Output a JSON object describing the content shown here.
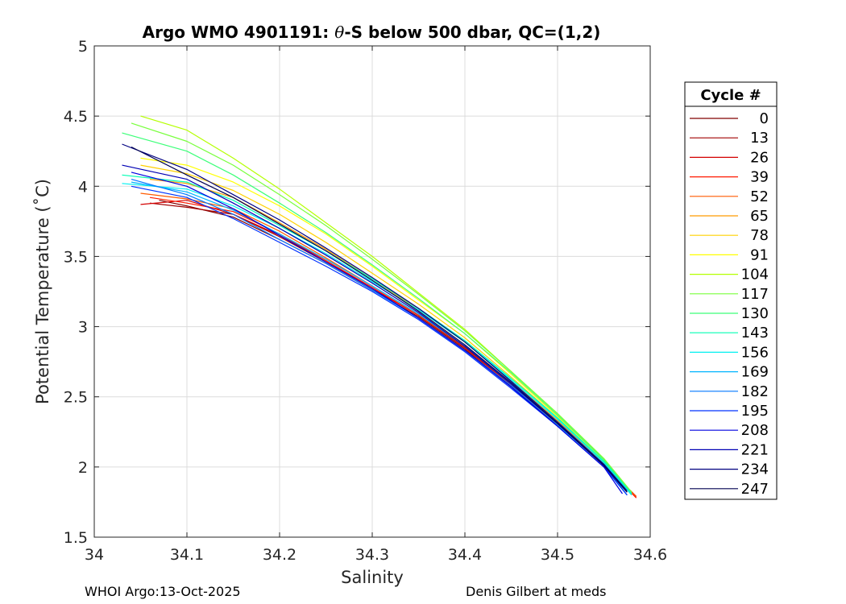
{
  "chart_data": {
    "type": "line",
    "title_prefix": "Argo WMO 4901191: ",
    "title_symbol": "θ",
    "title_suffix": "-S below 500 dbar,  QC=(1,2)",
    "xlabel": "Salinity",
    "ylabel": "Potential Temperature (˚C)",
    "xlim": [
      34,
      34.6
    ],
    "ylim": [
      1.5,
      5
    ],
    "xticks": [
      34,
      34.1,
      34.2,
      34.3,
      34.4,
      34.5,
      34.6
    ],
    "xtick_labels": [
      "34",
      "34.1",
      "34.2",
      "34.3",
      "34.4",
      "34.5",
      "34.6"
    ],
    "yticks": [
      1.5,
      2,
      2.5,
      3,
      3.5,
      4,
      4.5,
      5
    ],
    "ytick_labels": [
      "1.5",
      "2",
      "2.5",
      "3",
      "3.5",
      "4",
      "4.5",
      "5"
    ],
    "grid": true,
    "legend_title": "Cycle #",
    "legend_position": "outside-right",
    "series": [
      {
        "name": "0",
        "color": "#800000",
        "x": [
          34.07,
          34.1,
          34.15,
          34.2,
          34.25,
          34.3,
          34.35,
          34.4,
          34.45,
          34.5,
          34.55,
          34.585
        ],
        "y": [
          3.9,
          3.86,
          3.78,
          3.62,
          3.45,
          3.26,
          3.07,
          2.84,
          2.57,
          2.3,
          2.02,
          1.79
        ]
      },
      {
        "name": "13",
        "color": "#a00000",
        "x": [
          34.06,
          34.1,
          34.15,
          34.2,
          34.25,
          34.3,
          34.35,
          34.4,
          34.45,
          34.5,
          34.55,
          34.585
        ],
        "y": [
          3.88,
          3.85,
          3.8,
          3.64,
          3.46,
          3.27,
          3.08,
          2.85,
          2.58,
          2.31,
          2.02,
          1.79
        ]
      },
      {
        "name": "26",
        "color": "#d40000",
        "x": [
          34.05,
          34.1,
          34.15,
          34.2,
          34.25,
          34.3,
          34.35,
          34.4,
          34.45,
          34.5,
          34.55,
          34.585
        ],
        "y": [
          3.87,
          3.9,
          3.8,
          3.65,
          3.47,
          3.27,
          3.08,
          2.85,
          2.58,
          2.31,
          2.02,
          1.78
        ]
      },
      {
        "name": "39",
        "color": "#ff1a00",
        "x": [
          34.06,
          34.1,
          34.15,
          34.2,
          34.25,
          34.3,
          34.35,
          34.4,
          34.45,
          34.5,
          34.55,
          34.585
        ],
        "y": [
          3.92,
          3.88,
          3.82,
          3.66,
          3.47,
          3.28,
          3.08,
          2.86,
          2.58,
          2.31,
          2.02,
          1.78
        ]
      },
      {
        "name": "52",
        "color": "#ff5a00",
        "x": [
          34.05,
          34.1,
          34.15,
          34.2,
          34.25,
          34.3,
          34.35,
          34.4,
          34.45,
          34.5,
          34.55,
          34.585
        ],
        "y": [
          3.95,
          3.91,
          3.84,
          3.68,
          3.49,
          3.29,
          3.09,
          2.86,
          2.59,
          2.31,
          2.02,
          1.79
        ]
      },
      {
        "name": "65",
        "color": "#ff9a00",
        "x": [
          34.06,
          34.1,
          34.15,
          34.2,
          34.25,
          34.3,
          34.35,
          34.4,
          34.45,
          34.5,
          34.55,
          34.58
        ],
        "y": [
          4.05,
          4.02,
          3.92,
          3.74,
          3.55,
          3.34,
          3.12,
          2.89,
          2.61,
          2.33,
          2.03,
          1.8
        ]
      },
      {
        "name": "78",
        "color": "#ffd000",
        "x": [
          34.05,
          34.1,
          34.15,
          34.2,
          34.25,
          34.3,
          34.35,
          34.4,
          34.45,
          34.5,
          34.55,
          34.58
        ],
        "y": [
          4.15,
          4.09,
          3.97,
          3.8,
          3.6,
          3.38,
          3.16,
          2.92,
          2.64,
          2.35,
          2.04,
          1.81
        ]
      },
      {
        "name": "91",
        "color": "#ffff00",
        "x": [
          34.05,
          34.1,
          34.15,
          34.2,
          34.25,
          34.3,
          34.35,
          34.4,
          34.45,
          34.5,
          34.55,
          34.58
        ],
        "y": [
          4.2,
          4.15,
          4.03,
          3.86,
          3.66,
          3.43,
          3.19,
          2.95,
          2.66,
          2.36,
          2.05,
          1.81
        ]
      },
      {
        "name": "104",
        "color": "#b4ff00",
        "x": [
          34.05,
          34.1,
          34.15,
          34.2,
          34.25,
          34.3,
          34.35,
          34.4,
          34.45,
          34.5,
          34.55,
          34.58
        ],
        "y": [
          4.5,
          4.4,
          4.2,
          3.98,
          3.74,
          3.5,
          3.24,
          2.98,
          2.68,
          2.38,
          2.06,
          1.82
        ]
      },
      {
        "name": "117",
        "color": "#78ff3c",
        "x": [
          34.04,
          34.1,
          34.15,
          34.2,
          34.25,
          34.3,
          34.35,
          34.4,
          34.45,
          34.5,
          34.55,
          34.58
        ],
        "y": [
          4.45,
          4.32,
          4.15,
          3.94,
          3.72,
          3.48,
          3.23,
          2.97,
          2.68,
          2.38,
          2.06,
          1.82
        ]
      },
      {
        "name": "130",
        "color": "#3cff78",
        "x": [
          34.03,
          34.1,
          34.15,
          34.2,
          34.25,
          34.3,
          34.35,
          34.4,
          34.45,
          34.5,
          34.55,
          34.58
        ],
        "y": [
          4.38,
          4.25,
          4.08,
          3.88,
          3.67,
          3.44,
          3.2,
          2.95,
          2.67,
          2.37,
          2.05,
          1.81
        ]
      },
      {
        "name": "143",
        "color": "#00ffb4",
        "x": [
          34.03,
          34.1,
          34.15,
          34.2,
          34.25,
          34.3,
          34.35,
          34.4,
          34.45,
          34.5,
          34.55,
          34.58
        ],
        "y": [
          4.08,
          4.03,
          3.9,
          3.72,
          3.54,
          3.34,
          3.13,
          2.9,
          2.63,
          2.35,
          2.04,
          1.81
        ]
      },
      {
        "name": "156",
        "color": "#00f0f0",
        "x": [
          34.03,
          34.1,
          34.15,
          34.2,
          34.25,
          34.3,
          34.35,
          34.4,
          34.45,
          34.5,
          34.55,
          34.58
        ],
        "y": [
          4.02,
          3.98,
          3.86,
          3.7,
          3.52,
          3.32,
          3.12,
          2.89,
          2.62,
          2.34,
          2.03,
          1.8
        ]
      },
      {
        "name": "169",
        "color": "#00b4ff",
        "x": [
          34.04,
          34.1,
          34.15,
          34.2,
          34.25,
          34.3,
          34.35,
          34.4,
          34.45,
          34.5,
          34.55,
          34.575
        ],
        "y": [
          4.03,
          3.96,
          3.83,
          3.66,
          3.48,
          3.29,
          3.09,
          2.86,
          2.6,
          2.32,
          2.02,
          1.8
        ]
      },
      {
        "name": "182",
        "color": "#0078ff",
        "x": [
          34.04,
          34.1,
          34.15,
          34.2,
          34.25,
          34.3,
          34.35,
          34.4,
          34.45,
          34.5,
          34.55,
          34.575
        ],
        "y": [
          4.05,
          3.94,
          3.8,
          3.62,
          3.45,
          3.26,
          3.06,
          2.83,
          2.58,
          2.3,
          2.01,
          1.8
        ]
      },
      {
        "name": "195",
        "color": "#0032ff",
        "x": [
          34.04,
          34.1,
          34.15,
          34.2,
          34.25,
          34.3,
          34.35,
          34.4,
          34.45,
          34.5,
          34.55,
          34.575
        ],
        "y": [
          4.0,
          3.92,
          3.77,
          3.6,
          3.43,
          3.25,
          3.05,
          2.82,
          2.56,
          2.29,
          2.0,
          1.8
        ]
      },
      {
        "name": "208",
        "color": "#0000e0",
        "x": [
          34.04,
          34.1,
          34.15,
          34.2,
          34.25,
          34.3,
          34.35,
          34.4,
          34.45,
          34.5,
          34.55,
          34.57
        ],
        "y": [
          4.1,
          4.0,
          3.84,
          3.65,
          3.46,
          3.27,
          3.06,
          2.83,
          2.57,
          2.29,
          2.0,
          1.81
        ]
      },
      {
        "name": "221",
        "color": "#0000b4",
        "x": [
          34.03,
          34.1,
          34.15,
          34.2,
          34.25,
          34.3,
          34.35,
          34.4,
          34.45,
          34.5,
          34.55,
          34.575
        ],
        "y": [
          4.15,
          4.05,
          3.88,
          3.7,
          3.51,
          3.31,
          3.1,
          2.86,
          2.59,
          2.31,
          2.01,
          1.82
        ]
      },
      {
        "name": "234",
        "color": "#000080",
        "x": [
          34.03,
          34.1,
          34.15,
          34.2,
          34.25,
          34.3,
          34.35,
          34.4,
          34.45,
          34.5,
          34.55,
          34.575
        ],
        "y": [
          4.3,
          4.12,
          3.94,
          3.76,
          3.56,
          3.35,
          3.13,
          2.89,
          2.61,
          2.32,
          2.02,
          1.83
        ]
      },
      {
        "name": "247",
        "color": "#000050",
        "x": [
          34.04,
          34.1,
          34.15,
          34.2,
          34.25,
          34.3,
          34.35,
          34.4,
          34.45,
          34.5,
          34.55,
          34.575
        ],
        "y": [
          4.28,
          4.08,
          3.92,
          3.73,
          3.54,
          3.33,
          3.11,
          2.87,
          2.6,
          2.31,
          2.01,
          1.82
        ]
      }
    ]
  },
  "footer": {
    "left": "WHOI Argo:13-Oct-2025",
    "right": "Denis Gilbert at meds"
  }
}
